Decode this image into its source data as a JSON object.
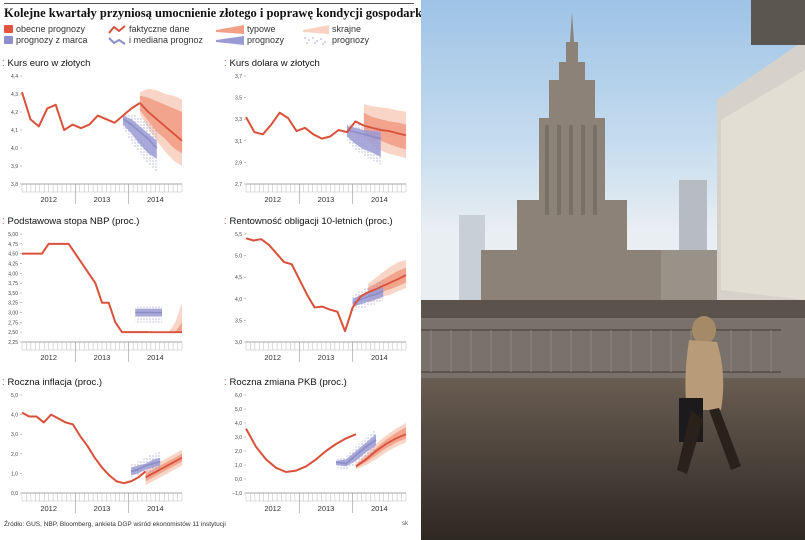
{
  "title": "Kolejne kwartały przyniosą umocnienie złotego i poprawę kondycji gospodarki",
  "legend": {
    "current": "obecne prognozy",
    "march": "prognozy z marca",
    "actual": "faktyczne dane",
    "median": "i mediana prognoz",
    "typical": "typowe",
    "typical2": "prognozy",
    "extreme": "skrajne",
    "extreme2": "prognozy"
  },
  "colors": {
    "actual": "#d9513a",
    "current_typical": "#f19f86",
    "current_extreme": "#f8d3c3",
    "march_typical": "#9b9bd4",
    "march_extreme": "#c4c4e6",
    "median": "#8c8cc8"
  },
  "chart_data": [
    {
      "type": "line",
      "title": "Kurs euro w złotych",
      "ylim": [
        3.8,
        4.4
      ],
      "yticks": [
        "3,8",
        "3,9",
        "4,0",
        "4,1",
        "4,2",
        "4,3",
        "4,4"
      ],
      "years": [
        "2012",
        "2013",
        "2014"
      ],
      "actual": [
        4.31,
        4.16,
        4.12,
        4.22,
        4.24,
        4.1,
        4.13,
        4.11,
        4.13,
        4.18,
        4.16,
        4.14,
        4.18,
        4.22,
        4.25
      ],
      "current_median": [
        4.25,
        4.2,
        4.16,
        4.12,
        4.08,
        4.04
      ],
      "current_typical": {
        "upper": [
          4.29,
          4.28,
          4.26,
          4.24,
          4.22,
          4.2
        ],
        "lower": [
          4.21,
          4.15,
          4.09,
          4.05,
          4.0,
          3.97
        ]
      },
      "current_extreme": {
        "upper": [
          4.31,
          4.33,
          4.32,
          4.3,
          4.29,
          4.27
        ],
        "lower": [
          4.19,
          4.11,
          4.04,
          3.98,
          3.93,
          3.9
        ]
      },
      "march_median": [
        4.16,
        4.13,
        4.09,
        4.05,
        4.0
      ],
      "march_typical": {
        "upper": [
          4.18,
          4.16,
          4.12,
          4.08,
          4.04
        ],
        "lower": [
          4.13,
          4.08,
          4.02,
          3.97,
          3.94
        ]
      },
      "march_extreme": {
        "upper": [
          4.19,
          4.19,
          4.17,
          4.14,
          4.1
        ],
        "lower": [
          4.11,
          4.03,
          3.97,
          3.91,
          3.86
        ]
      }
    },
    {
      "type": "line",
      "title": "Kurs dolara w złotych",
      "ylim": [
        2.7,
        3.7
      ],
      "yticks": [
        "2,7",
        "2,9",
        "3,1",
        "3,3",
        "3,5",
        "3,7"
      ],
      "years": [
        "2012",
        "2013",
        "2014"
      ],
      "actual": [
        3.32,
        3.18,
        3.16,
        3.25,
        3.36,
        3.31,
        3.19,
        3.22,
        3.16,
        3.12,
        3.14,
        3.2,
        3.18,
        3.28,
        3.24
      ],
      "current_median": [
        3.24,
        3.22,
        3.2,
        3.19,
        3.17,
        3.15
      ],
      "current_typical": {
        "upper": [
          3.36,
          3.32,
          3.3,
          3.28,
          3.27,
          3.25
        ],
        "lower": [
          3.18,
          3.12,
          3.1,
          3.07,
          3.04,
          3.02
        ]
      },
      "current_extreme": {
        "upper": [
          3.44,
          3.42,
          3.41,
          3.4,
          3.38,
          3.37
        ],
        "lower": [
          3.13,
          3.06,
          3.01,
          2.98,
          2.96,
          2.94
        ]
      },
      "march_median": [
        3.2,
        3.18,
        3.16,
        3.14,
        3.12
      ],
      "march_typical": {
        "upper": [
          3.24,
          3.22,
          3.2,
          3.19,
          3.18
        ],
        "lower": [
          3.14,
          3.07,
          3.02,
          2.99,
          2.95
        ]
      },
      "march_extreme": {
        "upper": [
          3.26,
          3.26,
          3.24,
          3.24,
          3.22
        ],
        "lower": [
          3.1,
          3.02,
          2.96,
          2.92,
          2.88
        ]
      }
    },
    {
      "type": "line",
      "title": "Podstawowa stopa NBP (proc.)",
      "ylim": [
        2.25,
        5.0
      ],
      "yticks": [
        "2,25",
        "2,50",
        "2,75",
        "3,00",
        "3,25",
        "3,50",
        "3,75",
        "4,00",
        "4,25",
        "4,50",
        "4,75",
        "5,00"
      ],
      "years": [
        "2012",
        "2013",
        "2014"
      ],
      "actual": [
        4.5,
        4.5,
        4.5,
        4.5,
        4.75,
        4.75,
        4.75,
        4.75,
        4.5,
        4.25,
        4.0,
        3.75,
        3.25,
        3.25,
        2.75,
        2.5,
        2.5,
        2.5,
        2.5,
        2.5
      ],
      "current_median": [
        2.5,
        2.5,
        2.5,
        2.5,
        2.5,
        2.5
      ],
      "current_typical": {
        "upper": [
          2.5,
          2.5,
          2.5,
          2.5,
          2.5,
          2.75
        ],
        "lower": [
          2.5,
          2.5,
          2.5,
          2.5,
          2.5,
          2.5
        ]
      },
      "current_extreme": {
        "upper": [
          2.5,
          2.5,
          2.5,
          2.5,
          2.75,
          3.25
        ],
        "lower": [
          2.5,
          2.5,
          2.5,
          2.5,
          2.5,
          2.5
        ]
      },
      "march_median": [
        3.0,
        3.0,
        3.0,
        3.0,
        3.0
      ],
      "march_typical": {
        "upper": [
          3.1,
          3.1,
          3.1,
          3.1,
          3.1
        ],
        "lower": [
          2.9,
          2.9,
          2.9,
          2.9,
          2.9
        ]
      },
      "march_extreme": {
        "upper": [
          3.15,
          3.15,
          3.15,
          3.15,
          3.15
        ],
        "lower": [
          2.75,
          2.75,
          2.75,
          2.75,
          2.75
        ]
      }
    },
    {
      "type": "line",
      "title": "Rentowność obligacji 10-letnich (proc.)",
      "ylim": [
        3.0,
        5.5
      ],
      "yticks": [
        "3,0",
        "3,5",
        "4,0",
        "4,5",
        "5,0",
        "5,5"
      ],
      "years": [
        "2012",
        "2013",
        "2014"
      ],
      "actual": [
        5.4,
        5.35,
        5.38,
        5.25,
        5.05,
        4.85,
        4.8,
        4.45,
        4.1,
        3.8,
        3.82,
        3.75,
        3.7,
        3.25,
        3.8,
        4.05,
        4.15
      ],
      "current_median": [
        4.15,
        4.22,
        4.3,
        4.38,
        4.46,
        4.55
      ],
      "current_typical": {
        "upper": [
          4.25,
          4.35,
          4.45,
          4.55,
          4.65,
          4.72
        ],
        "lower": [
          4.05,
          4.1,
          4.17,
          4.23,
          4.3,
          4.38
        ]
      },
      "current_extreme": {
        "upper": [
          4.35,
          4.48,
          4.62,
          4.75,
          4.85,
          4.9
        ],
        "lower": [
          3.9,
          3.98,
          4.05,
          4.1,
          4.18,
          4.25
        ]
      },
      "march_median": [
        3.9,
        3.98,
        4.05,
        4.1,
        4.18
      ],
      "march_typical": {
        "upper": [
          4.0,
          4.08,
          4.15,
          4.22,
          4.3
        ],
        "lower": [
          3.82,
          3.87,
          3.93,
          3.98,
          4.05
        ]
      },
      "march_extreme": {
        "upper": [
          4.08,
          4.18,
          4.27,
          4.35,
          4.45
        ],
        "lower": [
          3.72,
          3.77,
          3.82,
          3.88,
          3.95
        ]
      }
    },
    {
      "type": "line",
      "title": "Roczna inflacja (proc.)",
      "ylim": [
        0.0,
        5.0
      ],
      "yticks": [
        "0,0",
        "1,0",
        "2,0",
        "3,0",
        "4,0",
        "5,0"
      ],
      "years": [
        "2012",
        "2013",
        "2014"
      ],
      "actual": [
        4.1,
        3.9,
        3.9,
        3.6,
        4.0,
        3.8,
        3.6,
        3.5,
        2.9,
        2.4,
        1.8,
        1.3,
        0.9,
        0.6,
        0.5,
        0.6,
        0.8,
        1.1
      ],
      "current_median": [
        0.8,
        1.0,
        1.2,
        1.4,
        1.6,
        1.8
      ],
      "current_typical": {
        "upper": [
          1.0,
          1.2,
          1.4,
          1.6,
          1.8,
          2.0
        ],
        "lower": [
          0.6,
          0.8,
          1.0,
          1.2,
          1.4,
          1.6
        ]
      },
      "current_extreme": {
        "upper": [
          1.2,
          1.4,
          1.6,
          1.8,
          2.0,
          2.2
        ],
        "lower": [
          0.4,
          0.6,
          0.8,
          1.0,
          1.2,
          1.4
        ]
      },
      "march_median": [
        1.1,
        1.2,
        1.4,
        1.5,
        1.6
      ],
      "march_typical": {
        "upper": [
          1.3,
          1.4,
          1.5,
          1.7,
          1.8
        ],
        "lower": [
          0.9,
          1.0,
          1.2,
          1.3,
          1.4
        ]
      },
      "march_extreme": {
        "upper": [
          1.5,
          1.6,
          1.8,
          2.0,
          2.1
        ],
        "lower": [
          0.8,
          0.9,
          1.0,
          1.1,
          1.2
        ]
      }
    },
    {
      "type": "line",
      "title": "Roczna zmiana PKB (proc.)",
      "ylim": [
        -1.0,
        6.0
      ],
      "yticks": [
        "−1,0",
        "0,0",
        "1,0",
        "2,0",
        "3,0",
        "4,0",
        "5,0",
        "6,0"
      ],
      "years": [
        "2012",
        "2013",
        "2014"
      ],
      "actual": [
        3.6,
        2.3,
        1.4,
        0.8,
        0.5,
        0.6,
        0.9,
        1.4,
        2.0,
        2.5,
        2.9,
        3.2
      ],
      "current_median": [
        0.9,
        1.4,
        2.0,
        2.5,
        2.9,
        3.2
      ],
      "current_typical": {
        "upper": [
          1.0,
          1.6,
          2.2,
          2.8,
          3.3,
          3.7
        ],
        "lower": [
          0.8,
          1.2,
          1.7,
          2.2,
          2.6,
          2.9
        ]
      },
      "current_extreme": {
        "upper": [
          1.1,
          1.8,
          2.5,
          3.1,
          3.6,
          4.0
        ],
        "lower": [
          0.7,
          1.0,
          1.4,
          1.9,
          2.3,
          2.6
        ]
      },
      "march_median": [
        1.2,
        1.1,
        1.7,
        2.3,
        2.8
      ],
      "march_typical": {
        "upper": [
          1.3,
          1.4,
          2.0,
          2.6,
          3.2
        ],
        "lower": [
          1.0,
          0.9,
          1.3,
          1.9,
          2.4
        ]
      },
      "march_extreme": {
        "upper": [
          1.4,
          1.6,
          2.3,
          3.0,
          3.6
        ],
        "lower": [
          0.8,
          0.7,
          1.0,
          1.5,
          2.0
        ]
      }
    }
  ],
  "source": "Źródło: GUS, NBP, Bloomberg, ankieta DGP wśród ekonomistów 11 instytucji",
  "credit": "sk"
}
